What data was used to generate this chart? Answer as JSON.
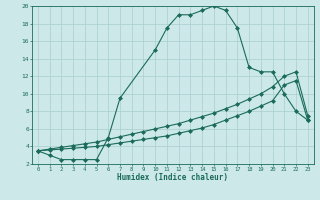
{
  "xlabel": "Humidex (Indice chaleur)",
  "bg_color": "#cce8e8",
  "line_color": "#1a6b5a",
  "grid_color": "#aacece",
  "xlim": [
    -0.5,
    23.5
  ],
  "ylim": [
    2,
    20
  ],
  "xticks": [
    0,
    1,
    2,
    3,
    4,
    5,
    6,
    7,
    8,
    9,
    10,
    11,
    12,
    13,
    14,
    15,
    16,
    17,
    18,
    19,
    20,
    21,
    22,
    23
  ],
  "yticks": [
    2,
    4,
    6,
    8,
    10,
    12,
    14,
    16,
    18,
    20
  ],
  "curve1_x": [
    0,
    1,
    2,
    3,
    4,
    5,
    6,
    7,
    10,
    11,
    12,
    13,
    14,
    15,
    16,
    17,
    18,
    19,
    20,
    21,
    22,
    23
  ],
  "curve1_y": [
    3.5,
    3.0,
    2.5,
    2.5,
    2.5,
    2.5,
    5.0,
    9.5,
    15.0,
    17.5,
    19.0,
    19.0,
    19.5,
    20.0,
    19.5,
    17.5,
    13.0,
    12.5,
    12.5,
    10.0,
    8.0,
    7.0
  ],
  "curve2_x": [
    0,
    1,
    2,
    3,
    4,
    5,
    6,
    7,
    8,
    9,
    10,
    11,
    12,
    13,
    14,
    15,
    16,
    17,
    18,
    19,
    20,
    21,
    22,
    23
  ],
  "curve2_y": [
    3.5,
    3.7,
    3.9,
    4.1,
    4.3,
    4.5,
    4.8,
    5.1,
    5.4,
    5.7,
    6.0,
    6.3,
    6.6,
    7.0,
    7.4,
    7.8,
    8.3,
    8.8,
    9.4,
    10.0,
    10.8,
    12.0,
    12.5,
    7.5
  ],
  "curve3_x": [
    0,
    1,
    2,
    3,
    4,
    5,
    6,
    7,
    8,
    9,
    10,
    11,
    12,
    13,
    14,
    15,
    16,
    17,
    18,
    19,
    20,
    21,
    22,
    23
  ],
  "curve3_y": [
    3.5,
    3.6,
    3.7,
    3.8,
    3.9,
    4.0,
    4.2,
    4.4,
    4.6,
    4.8,
    5.0,
    5.2,
    5.5,
    5.8,
    6.1,
    6.5,
    7.0,
    7.5,
    8.0,
    8.6,
    9.2,
    11.0,
    11.5,
    7.0
  ]
}
